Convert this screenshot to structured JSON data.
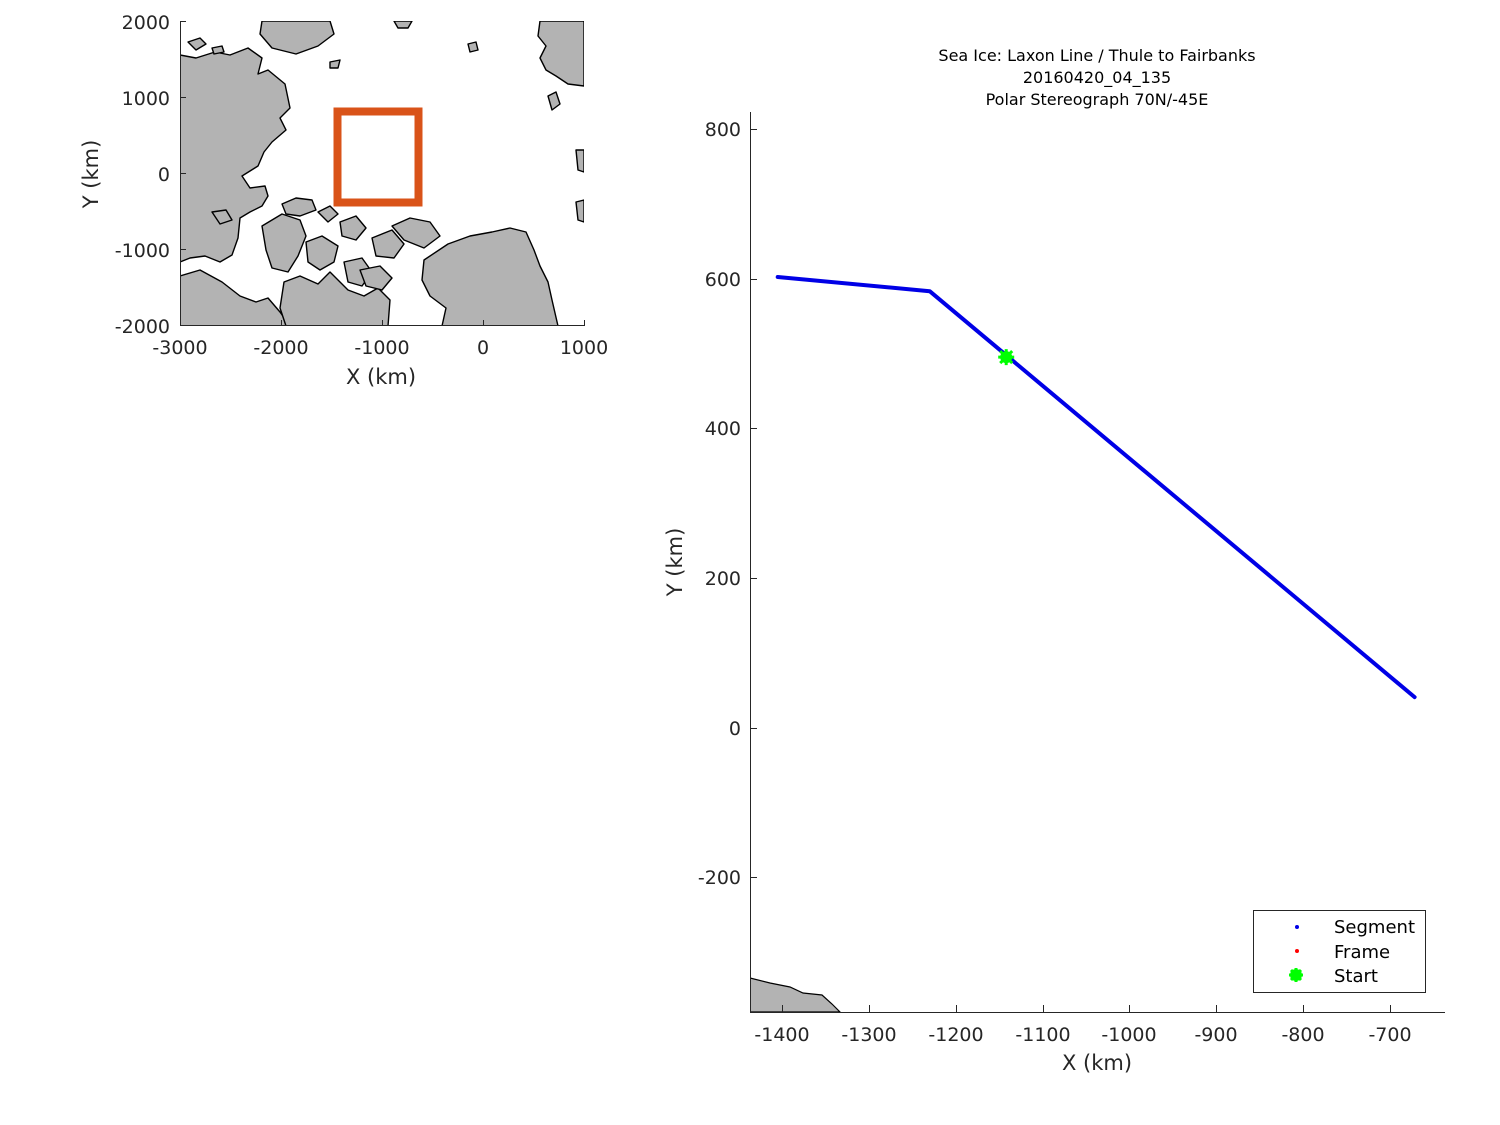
{
  "colors": {
    "land": "#b3b3b3",
    "coast": "#000000",
    "box": "#d95319",
    "track": "#0000e6",
    "start": "#00ff00",
    "frame": "#ff0000",
    "axis": "#262626"
  },
  "chart_data": [
    {
      "type": "scatter",
      "title": "",
      "xlabel": "X (km)",
      "ylabel": "Y (km)",
      "xlim": [
        -3000,
        1000
      ],
      "ylim": [
        -2000,
        2000
      ],
      "xticks": [
        "-3000",
        "-2000",
        "-1000",
        "0",
        "1000"
      ],
      "yticks": [
        "2000",
        "1000",
        "0",
        "-1000",
        "-2000"
      ],
      "highlight_box": {
        "x": [
          -1450,
          -620
        ],
        "y": [
          -400,
          850
        ]
      },
      "grid": false
    },
    {
      "type": "line",
      "title": [
        "Sea Ice: Laxon Line / Thule to Fairbanks",
        "20160420_04_135",
        "Polar Stereograph 70N/-45E"
      ],
      "xlabel": "X (km)",
      "ylabel": "Y (km)",
      "xlim": [
        -1440,
        -640
      ],
      "ylim": [
        -380,
        820
      ],
      "xticks": [
        "-1400",
        "-1300",
        "-1200",
        "-1100",
        "-1000",
        "-900",
        "-800",
        "-700"
      ],
      "yticks": [
        "800",
        "600",
        "400",
        "200",
        "0",
        "-200"
      ],
      "series": [
        {
          "name": "Segment",
          "x": [
            -1405,
            -1230,
            -672
          ],
          "y": [
            603,
            584,
            42
          ]
        },
        {
          "name": "Frame",
          "x": [],
          "y": []
        },
        {
          "name": "Start",
          "x": [
            -1142
          ],
          "y": [
            496
          ]
        }
      ],
      "legend": [
        "Segment",
        "Frame",
        "Start"
      ],
      "legend_position": "bottom-right",
      "grid": false
    }
  ]
}
